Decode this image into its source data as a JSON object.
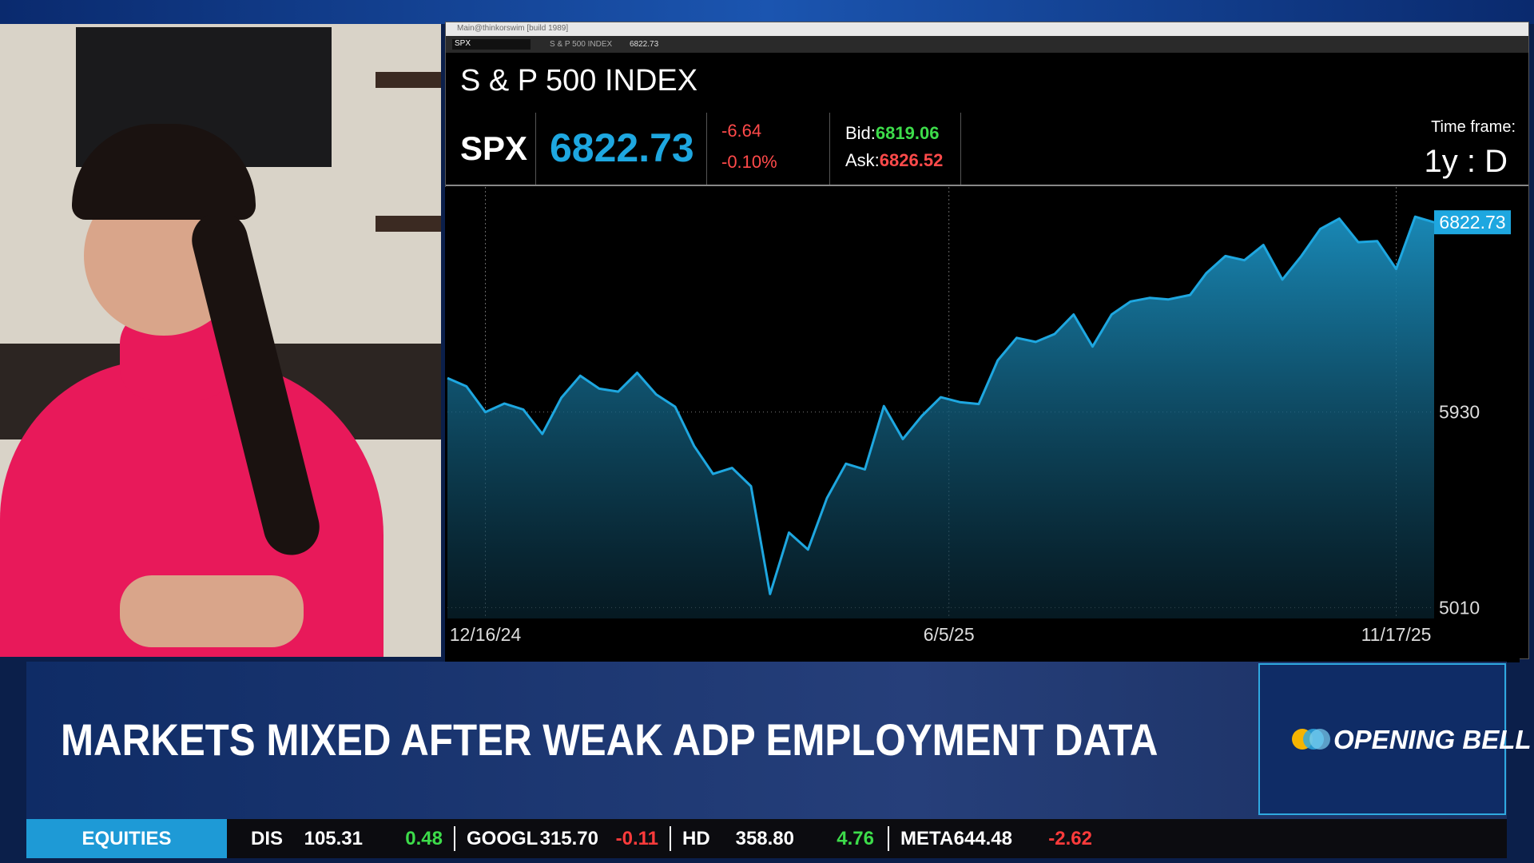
{
  "window": {
    "title": "Main@thinkorswim [build 1989]"
  },
  "quote": {
    "name": "S & P 500 INDEX",
    "symbol": "SPX",
    "last": "6822.73",
    "change": "-6.64",
    "change_pct": "-0.10%",
    "bid_label": "Bid:",
    "bid": "6819.06",
    "ask_label": "Ask:",
    "ask": "6826.52",
    "timeframe_label": "Time frame:",
    "timeframe": "1y : D"
  },
  "chart_data": {
    "type": "line",
    "x": [
      "12/2/24",
      "12/9/24",
      "12/16/24",
      "12/23/24",
      "12/30/24",
      "1/6/25",
      "1/13/25",
      "1/20/25",
      "1/27/25",
      "2/3/25",
      "2/10/25",
      "2/17/25",
      "2/24/25",
      "3/3/25",
      "3/10/25",
      "3/17/25",
      "3/24/25",
      "3/31/25",
      "4/7/25",
      "4/14/25",
      "4/21/25",
      "4/28/25",
      "5/5/25",
      "5/12/25",
      "5/19/25",
      "5/26/25",
      "6/2/25",
      "6/9/25",
      "6/16/25",
      "6/23/25",
      "6/30/25",
      "7/7/25",
      "7/14/25",
      "7/21/25",
      "7/28/25",
      "8/4/25",
      "8/11/25",
      "8/18/25",
      "8/25/25",
      "9/2/25",
      "9/8/25",
      "9/15/25",
      "9/22/25",
      "9/29/25",
      "10/6/25",
      "10/13/25",
      "10/20/25",
      "10/27/25",
      "11/3/25",
      "11/10/25",
      "11/17/25",
      "11/24/25",
      "12/1/25"
    ],
    "values": [
      6090,
      6051,
      5930,
      5970,
      5942,
      5827,
      5997,
      6101,
      6040,
      6026,
      6115,
      6013,
      5955,
      5770,
      5639,
      5667,
      5581,
      5074,
      5363,
      5283,
      5525,
      5687,
      5660,
      5958,
      5803,
      5912,
      6000,
      5977,
      5968,
      6173,
      6279,
      6260,
      6297,
      6389,
      6238,
      6389,
      6450,
      6467,
      6460,
      6481,
      6584,
      6664,
      6644,
      6716,
      6553,
      6664,
      6791,
      6840,
      6729,
      6734,
      6603,
      6849,
      6822.73
    ],
    "color": "#1ea7e0",
    "xlim": [
      "12/2/24",
      "12/1/25"
    ],
    "xticks": [
      "12/16/24",
      "6/5/25",
      "11/17/25"
    ],
    "ylim": [
      4959,
      6970
    ],
    "yticks": [
      5010,
      5930
    ],
    "grid": true
  },
  "headline": "MARKETS MIXED AFTER WEAK ADP EMPLOYMENT DATA",
  "show": "OPENING BELL",
  "ticker": {
    "label": "EQUITIES",
    "items": [
      {
        "symbol": "DIS",
        "price": "105.31",
        "change": "0.48"
      },
      {
        "symbol": "GOOGL",
        "price": "315.70",
        "change": "-0.11"
      },
      {
        "symbol": "HD",
        "price": "358.80",
        "change": "4.76"
      },
      {
        "symbol": "META",
        "price": "644.48",
        "change": "-2.62"
      }
    ]
  }
}
